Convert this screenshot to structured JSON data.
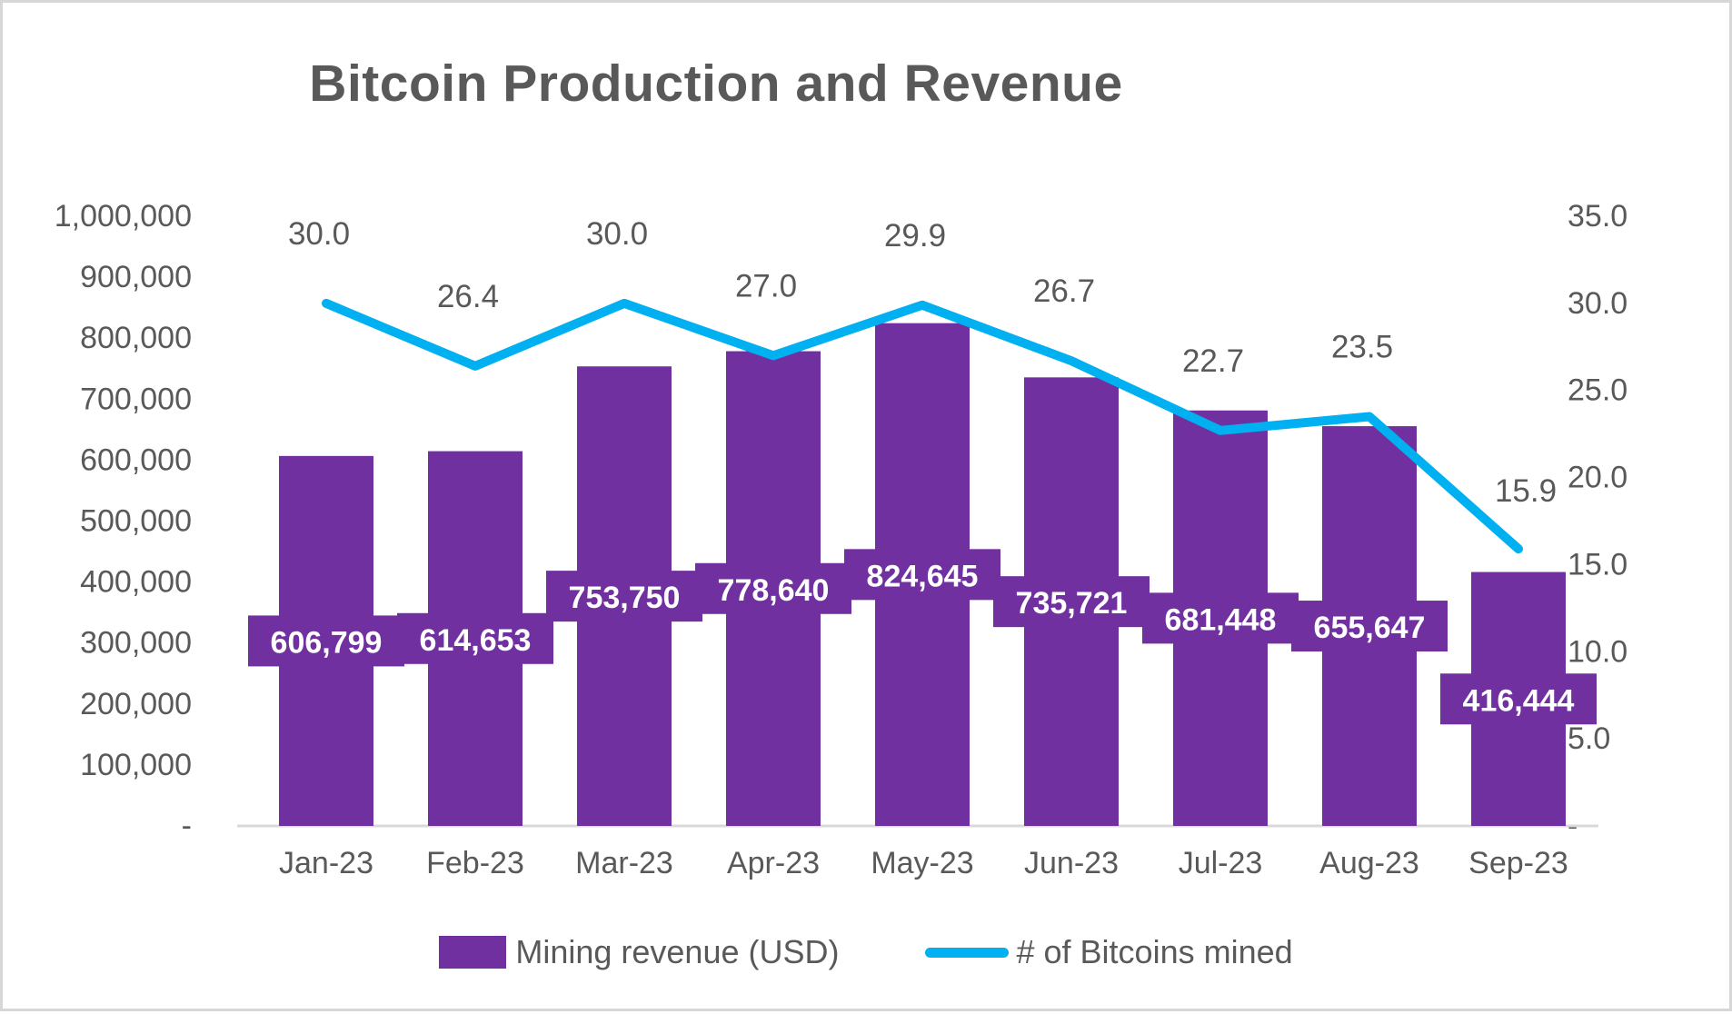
{
  "title": "Bitcoin Production and Revenue",
  "legend": [
    {
      "label": "Mining revenue (USD)",
      "type": "bar",
      "color": "#7030A0"
    },
    {
      "label": "# of Bitcoins mined",
      "type": "line",
      "color": "#00B0F0"
    }
  ],
  "colors": {
    "bar": "#7030A0",
    "line": "#00B0F0",
    "text": "#595959",
    "bar_label_text": "#FFFFFF",
    "axis_line": "#D9D9D9"
  },
  "chart_data": {
    "type": "combo",
    "title": "Bitcoin Production and Revenue",
    "categories": [
      "Jan-23",
      "Feb-23",
      "Mar-23",
      "Apr-23",
      "May-23",
      "Jun-23",
      "Jul-23",
      "Aug-23",
      "Sep-23"
    ],
    "series": [
      {
        "name": "Mining revenue (USD)",
        "type": "bar",
        "axis": "left",
        "values": [
          606799,
          614653,
          753750,
          778640,
          824645,
          735721,
          681448,
          655647,
          416444
        ],
        "labels": [
          "606,799",
          "614,653",
          "753,750",
          "778,640",
          "824,645",
          "735,721",
          "681,448",
          "655,647",
          "416,444"
        ]
      },
      {
        "name": "# of Bitcoins mined",
        "type": "line",
        "axis": "right",
        "values": [
          30.0,
          26.4,
          30.0,
          27.0,
          29.9,
          26.7,
          22.7,
          23.5,
          15.9
        ],
        "labels": [
          "30.0",
          "26.4",
          "30.0",
          "27.0",
          "29.9",
          "26.7",
          "22.7",
          "23.5",
          "15.9"
        ]
      }
    ],
    "left_axis": {
      "min": 0,
      "max": 1000000,
      "ticks": [
        "1,000,000",
        "900,000",
        "800,000",
        "700,000",
        "600,000",
        "500,000",
        "400,000",
        "300,000",
        "200,000",
        "100,000",
        "-"
      ]
    },
    "right_axis": {
      "min": 0,
      "max": 35,
      "ticks": [
        "35.0",
        "30.0",
        "25.0",
        "20.0",
        "15.0",
        "10.0",
        "5.0",
        "-"
      ]
    },
    "grid": false,
    "legend_position": "bottom"
  }
}
